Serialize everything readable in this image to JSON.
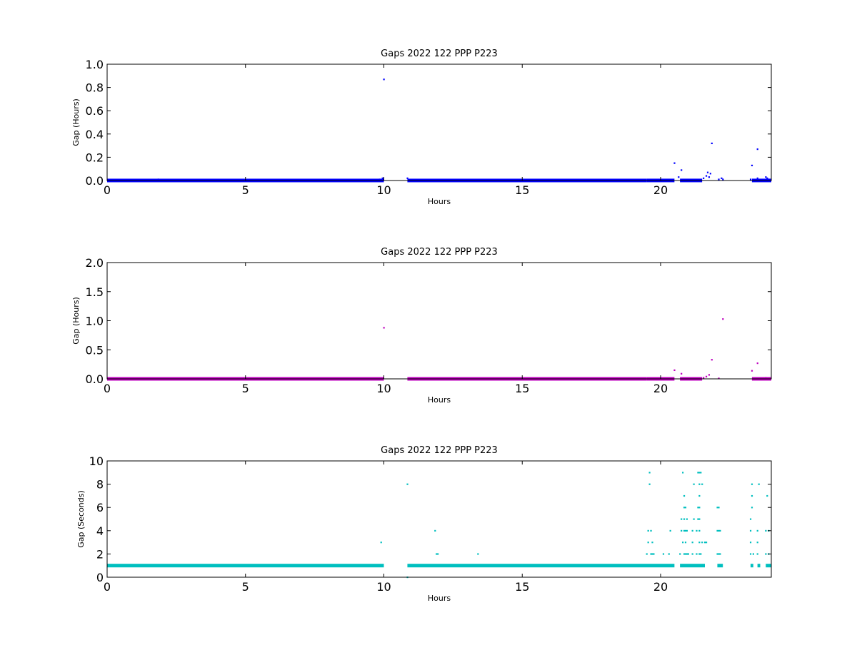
{
  "chart_data": [
    {
      "type": "scatter",
      "title": "Gaps 2022 122 PPP  P223",
      "xlabel": "Hours",
      "ylabel": "Gap (Hours)",
      "xlim": [
        0,
        24
      ],
      "ylim": [
        0,
        1.0
      ],
      "x_ticks": [
        0,
        5,
        10,
        15,
        20
      ],
      "x_tick_labels": [
        "0",
        "5",
        "10",
        "15",
        "20"
      ],
      "y_ticks": [
        0,
        0.2,
        0.4,
        0.6,
        0.8,
        1.0
      ],
      "y_tick_labels": [
        "0.0",
        "0.2",
        "0.4",
        "0.6",
        "0.8",
        "1.0"
      ],
      "grid": false,
      "color": "#0000ff",
      "baseline_segments": [
        [
          0,
          10.0,
          0.0003
        ],
        [
          10.85,
          19.5,
          0.0003
        ],
        [
          19.5,
          20.5,
          0.0005
        ],
        [
          20.7,
          21.5,
          0.0005
        ],
        [
          23.3,
          24,
          0.0005
        ]
      ],
      "points": [
        [
          1.85,
          0.01
        ],
        [
          9.85,
          0.01
        ],
        [
          9.95,
          0.02
        ],
        [
          10.0,
          0.87
        ],
        [
          10.85,
          0.02
        ],
        [
          20.5,
          0.15
        ],
        [
          20.65,
          0.03
        ],
        [
          20.75,
          0.09
        ],
        [
          21.55,
          0.02
        ],
        [
          21.65,
          0.04
        ],
        [
          21.7,
          0.07
        ],
        [
          21.75,
          0.03
        ],
        [
          21.8,
          0.06
        ],
        [
          21.85,
          0.32
        ],
        [
          22.1,
          0.01
        ],
        [
          22.2,
          0.02
        ],
        [
          22.25,
          0.01
        ],
        [
          23.25,
          0.01
        ],
        [
          23.3,
          0.13
        ],
        [
          23.5,
          0.27
        ],
        [
          23.5,
          0.02
        ],
        [
          23.8,
          0.03
        ],
        [
          23.85,
          0.02
        ],
        [
          23.9,
          0.01
        ]
      ]
    },
    {
      "type": "scatter",
      "title": "Gaps 2022 122 PPP  P223",
      "xlabel": "Hours",
      "ylabel": "Gap (Hours)",
      "xlim": [
        0,
        24
      ],
      "ylim": [
        0,
        2.0
      ],
      "x_ticks": [
        0,
        5,
        10,
        15,
        20
      ],
      "x_tick_labels": [
        "0",
        "5",
        "10",
        "15",
        "20"
      ],
      "y_ticks": [
        0,
        0.5,
        1.0,
        1.5,
        2.0
      ],
      "y_tick_labels": [
        "0.0",
        "0.5",
        "1.0",
        "1.5",
        "2.0"
      ],
      "grid": false,
      "color": "#bf00bf",
      "baseline_segments": [
        [
          0,
          10.0,
          0.0003
        ],
        [
          10.85,
          19.5,
          0.0003
        ],
        [
          19.5,
          20.5,
          0.0005
        ],
        [
          20.7,
          21.5,
          0.0005
        ],
        [
          23.3,
          24,
          0.0005
        ]
      ],
      "points": [
        [
          10.0,
          0.88
        ],
        [
          20.5,
          0.15
        ],
        [
          20.75,
          0.09
        ],
        [
          21.55,
          0.02
        ],
        [
          21.65,
          0.04
        ],
        [
          21.75,
          0.07
        ],
        [
          21.85,
          0.33
        ],
        [
          22.1,
          0.01
        ],
        [
          22.25,
          1.03
        ],
        [
          23.3,
          0.14
        ],
        [
          23.5,
          0.27
        ],
        [
          23.8,
          0.02
        ],
        [
          23.9,
          0.01
        ]
      ]
    },
    {
      "type": "scatter",
      "title": "Gaps 2022 122 PPP  P223",
      "xlabel": "Hours",
      "ylabel": "Gap (Seconds)",
      "xlim": [
        0,
        24
      ],
      "ylim": [
        0,
        10
      ],
      "x_ticks": [
        0,
        5,
        10,
        15,
        20
      ],
      "x_tick_labels": [
        "0",
        "5",
        "10",
        "15",
        "20"
      ],
      "y_ticks": [
        0,
        2,
        4,
        6,
        8,
        10
      ],
      "y_tick_labels": [
        "0",
        "2",
        "4",
        "6",
        "8",
        "10"
      ],
      "grid": false,
      "color": "#00bfbf",
      "baseline_segments": [
        [
          0,
          10.0,
          1
        ],
        [
          10.85,
          20.5,
          1
        ],
        [
          20.7,
          21.6,
          1
        ],
        [
          22.05,
          22.25,
          1
        ],
        [
          23.25,
          23.35,
          1
        ],
        [
          23.5,
          23.6,
          1
        ],
        [
          23.8,
          24,
          1
        ]
      ],
      "points": [
        [
          9.9,
          3
        ],
        [
          10.85,
          8
        ],
        [
          10.85,
          0
        ],
        [
          11.85,
          4
        ],
        [
          11.9,
          2
        ],
        [
          11.95,
          2
        ],
        [
          13.4,
          2
        ],
        [
          19.5,
          2
        ],
        [
          19.55,
          4
        ],
        [
          19.55,
          3
        ],
        [
          19.6,
          9
        ],
        [
          19.6,
          8
        ],
        [
          19.65,
          2
        ],
        [
          19.65,
          4
        ],
        [
          19.7,
          2
        ],
        [
          19.7,
          3
        ],
        [
          19.75,
          2
        ],
        [
          20.1,
          2
        ],
        [
          20.3,
          2
        ],
        [
          20.35,
          4
        ],
        [
          20.7,
          2
        ],
        [
          20.75,
          4
        ],
        [
          20.75,
          5
        ],
        [
          20.8,
          3
        ],
        [
          20.8,
          9
        ],
        [
          20.85,
          2
        ],
        [
          20.85,
          4
        ],
        [
          20.85,
          5
        ],
        [
          20.85,
          6
        ],
        [
          20.85,
          7
        ],
        [
          20.9,
          2
        ],
        [
          20.9,
          3
        ],
        [
          20.9,
          4
        ],
        [
          20.9,
          6
        ],
        [
          20.95,
          2
        ],
        [
          20.95,
          4
        ],
        [
          20.95,
          5
        ],
        [
          21.0,
          2
        ],
        [
          21.15,
          2
        ],
        [
          21.15,
          3
        ],
        [
          21.15,
          4
        ],
        [
          21.2,
          5
        ],
        [
          21.2,
          8
        ],
        [
          21.3,
          2
        ],
        [
          21.3,
          4
        ],
        [
          21.35,
          5
        ],
        [
          21.35,
          6
        ],
        [
          21.35,
          9
        ],
        [
          21.4,
          2
        ],
        [
          21.4,
          3
        ],
        [
          21.4,
          4
        ],
        [
          21.4,
          5
        ],
        [
          21.4,
          6
        ],
        [
          21.4,
          7
        ],
        [
          21.4,
          8
        ],
        [
          21.4,
          9
        ],
        [
          21.45,
          2
        ],
        [
          21.45,
          9
        ],
        [
          21.5,
          3
        ],
        [
          21.5,
          8
        ],
        [
          21.6,
          3
        ],
        [
          21.65,
          3
        ],
        [
          22.05,
          2
        ],
        [
          22.05,
          4
        ],
        [
          22.05,
          6
        ],
        [
          22.1,
          2
        ],
        [
          22.1,
          4
        ],
        [
          22.1,
          6
        ],
        [
          22.15,
          2
        ],
        [
          22.15,
          4
        ],
        [
          23.25,
          2
        ],
        [
          23.25,
          3
        ],
        [
          23.25,
          4
        ],
        [
          23.25,
          5
        ],
        [
          23.3,
          6
        ],
        [
          23.3,
          7
        ],
        [
          23.3,
          8
        ],
        [
          23.35,
          2
        ],
        [
          23.5,
          2
        ],
        [
          23.5,
          3
        ],
        [
          23.5,
          4
        ],
        [
          23.55,
          8
        ],
        [
          23.8,
          2
        ],
        [
          23.8,
          4
        ],
        [
          23.85,
          7
        ],
        [
          23.9,
          2
        ],
        [
          23.9,
          4
        ]
      ]
    }
  ]
}
